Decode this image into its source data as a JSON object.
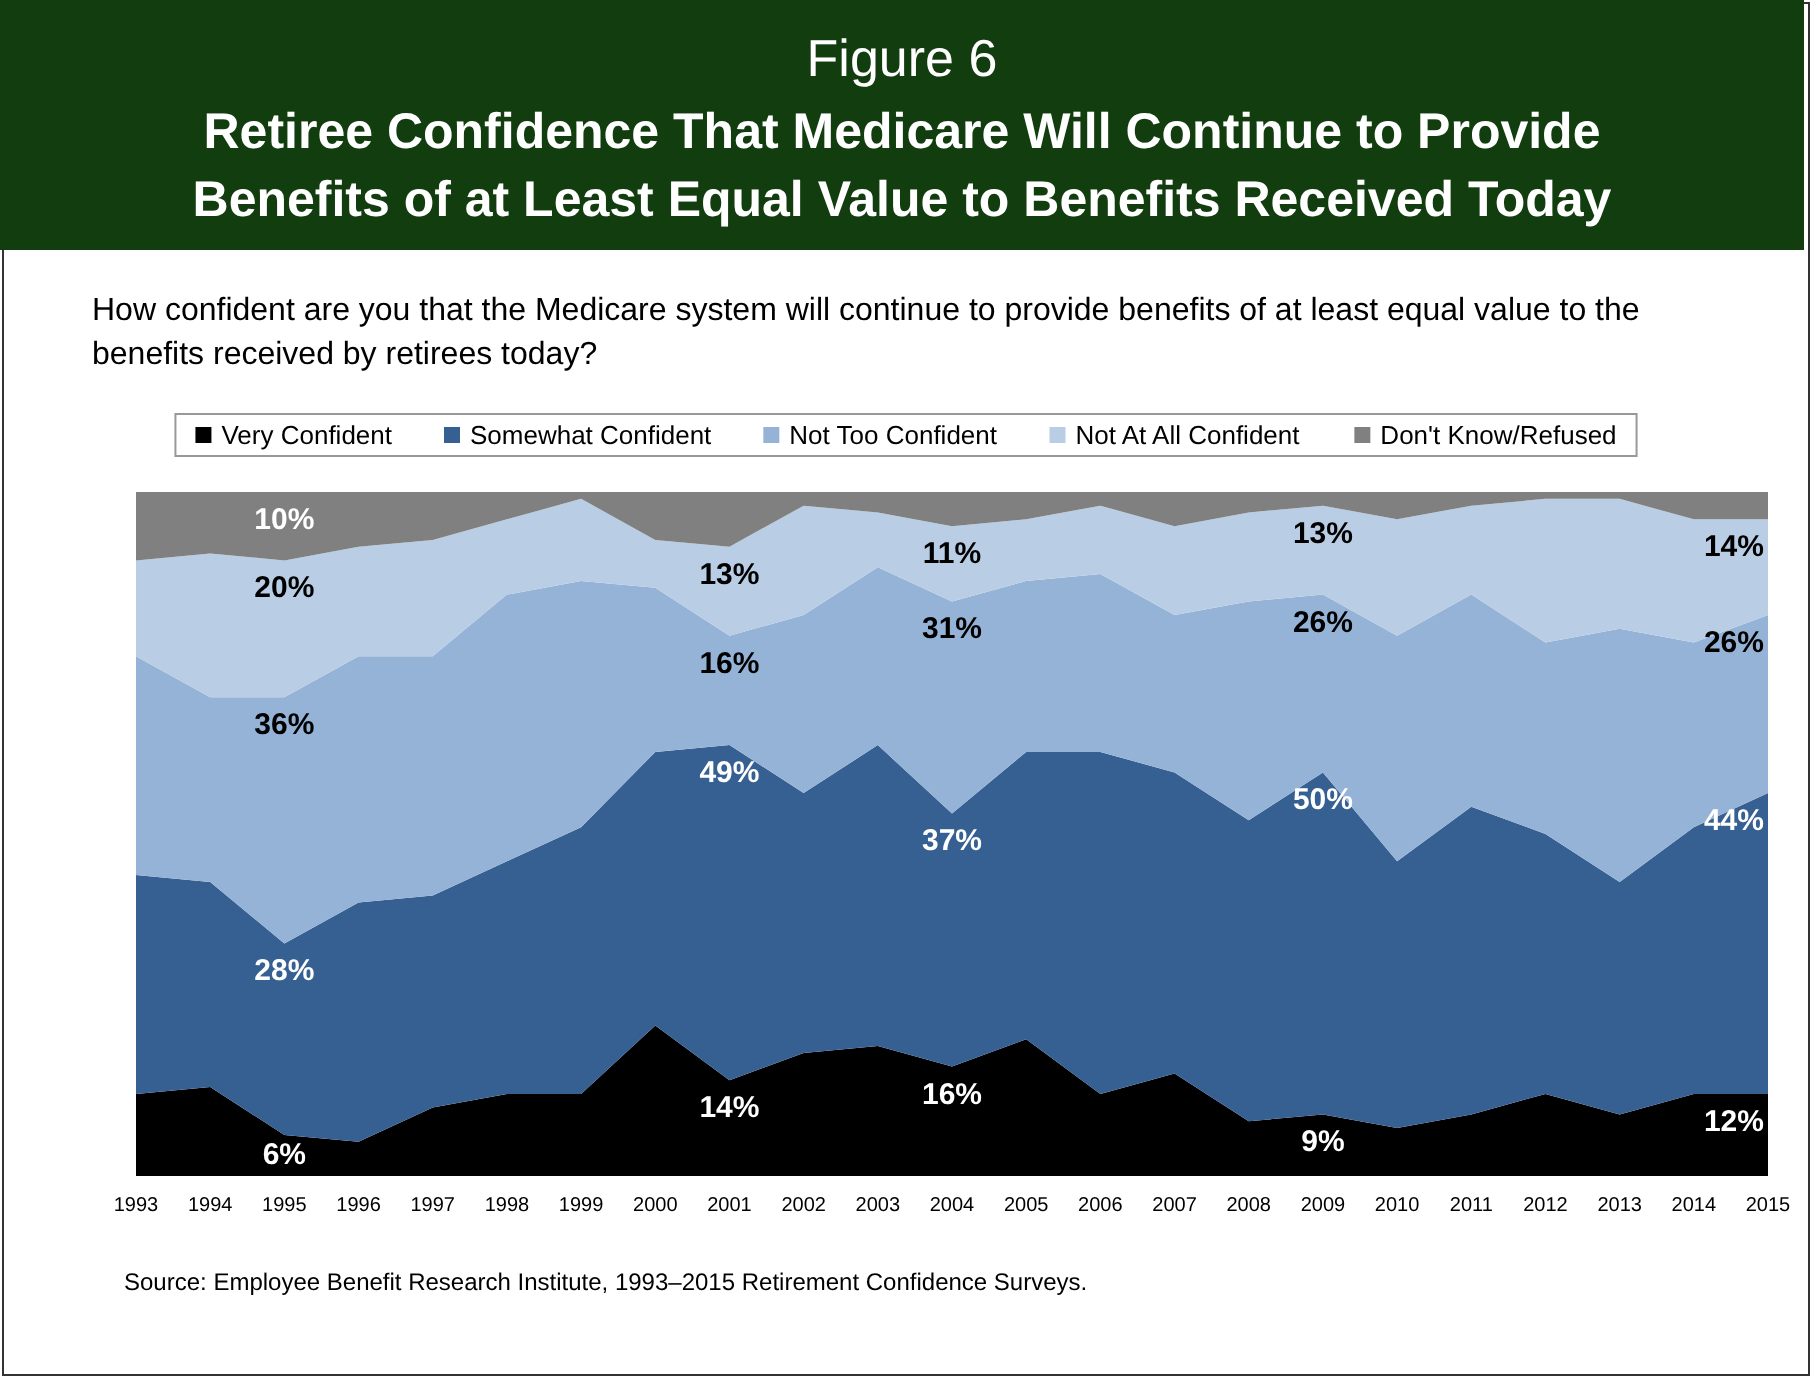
{
  "chart_data": {
    "type": "area",
    "stacked": true,
    "title": "Figure 6",
    "subtitle": "Retiree Confidence That Medicare Will Continue to Provide Benefits of at Least Equal Value to Benefits Received Today",
    "annotations": [
      "How confident are you that the Medicare system will continue to provide benefits of at least equal value to the benefits received by retirees today?",
      "Source:  Employee Benefit Research Institute, 1993–2015 Retirement Confidence Surveys."
    ],
    "legend": "top",
    "categories": [
      "1993",
      "1994",
      "1995",
      "1996",
      "1997",
      "1998",
      "1999",
      "2000",
      "2001",
      "2002",
      "2003",
      "2004",
      "2005",
      "2006",
      "2007",
      "2008",
      "2009",
      "2010",
      "2011",
      "2012",
      "2013",
      "2014",
      "2015"
    ],
    "series": [
      {
        "name": "Very Confident",
        "color": "#000000",
        "values": [
          12,
          13,
          6,
          5,
          10,
          12,
          12,
          22,
          14,
          18,
          19,
          16,
          20,
          12,
          15,
          8,
          9,
          7,
          9,
          12,
          9,
          12,
          12
        ],
        "value_labels": [
          null,
          null,
          "6%",
          null,
          null,
          null,
          null,
          null,
          "14%",
          null,
          null,
          "16%",
          null,
          null,
          null,
          null,
          "9%",
          null,
          null,
          null,
          null,
          null,
          "12%"
        ]
      },
      {
        "name": "Somewhat Confident",
        "color": "#366092",
        "values": [
          32,
          30,
          28,
          35,
          31,
          34,
          39,
          40,
          49,
          38,
          44,
          37,
          42,
          50,
          44,
          44,
          50,
          39,
          45,
          38,
          34,
          39,
          44
        ],
        "value_labels": [
          null,
          null,
          "28%",
          null,
          null,
          null,
          null,
          null,
          "49%",
          null,
          null,
          "37%",
          null,
          null,
          null,
          null,
          "50%",
          null,
          null,
          null,
          null,
          null,
          "44%"
        ]
      },
      {
        "name": "Not Too Confident",
        "color": "#95b3d7",
        "values": [
          32,
          27,
          36,
          36,
          35,
          39,
          36,
          24,
          16,
          26,
          26,
          31,
          25,
          26,
          23,
          32,
          26,
          33,
          31,
          28,
          37,
          27,
          26
        ],
        "value_labels": [
          null,
          null,
          "36%",
          null,
          null,
          null,
          null,
          null,
          "16%",
          null,
          null,
          "31%",
          null,
          null,
          null,
          null,
          "26%",
          null,
          null,
          null,
          null,
          null,
          "26%"
        ]
      },
      {
        "name": "Not At All Confident",
        "color": "#b9cde5",
        "values": [
          14,
          21,
          20,
          16,
          17,
          11,
          12,
          7,
          13,
          16,
          8,
          11,
          9,
          10,
          13,
          13,
          13,
          17,
          13,
          21,
          19,
          18,
          14
        ],
        "value_labels": [
          null,
          null,
          "20%",
          null,
          null,
          null,
          null,
          null,
          "13%",
          null,
          null,
          "11%",
          null,
          null,
          null,
          null,
          "13%",
          null,
          null,
          null,
          null,
          null,
          "14%"
        ]
      },
      {
        "name": "Don't Know/Refused",
        "color": "#808080",
        "values": [
          10,
          9,
          10,
          8,
          7,
          4,
          1,
          7,
          8,
          2,
          3,
          5,
          4,
          2,
          5,
          3,
          2,
          4,
          2,
          1,
          1,
          4,
          4
        ],
        "value_labels": [
          null,
          null,
          "10%",
          null,
          null,
          null,
          null,
          null,
          null,
          null,
          null,
          null,
          null,
          null,
          null,
          null,
          null,
          null,
          null,
          null,
          null,
          null,
          null
        ]
      }
    ]
  }
}
